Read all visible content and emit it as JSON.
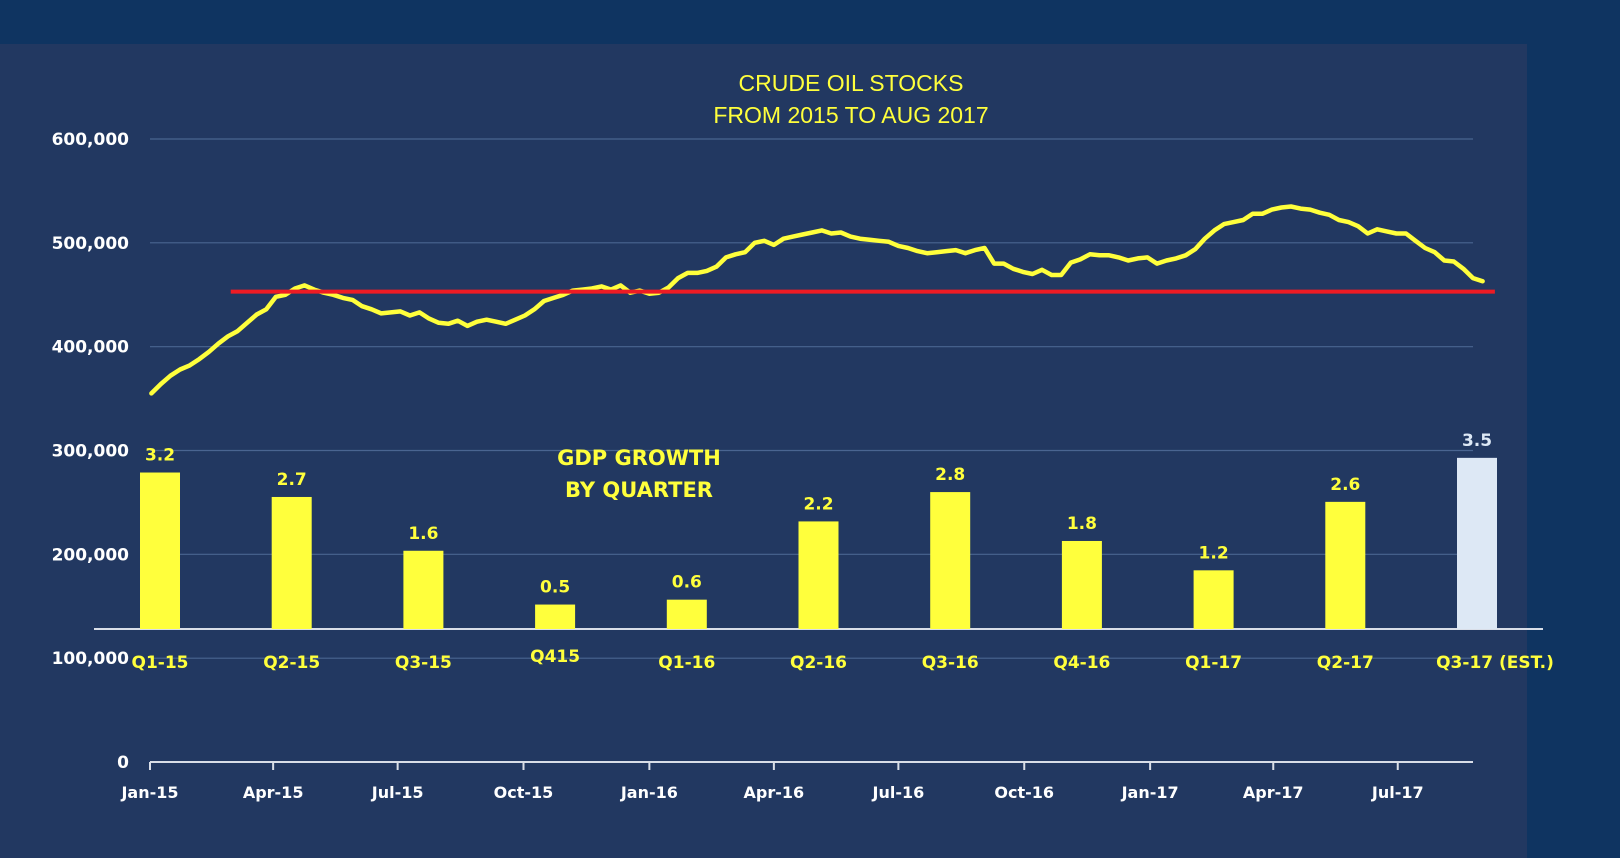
{
  "colors": {
    "page_background": "#0f3461",
    "panel_background": "#223861",
    "gridline": "#4a6591",
    "axis": "#d9dee8",
    "tick_text": "#ffffff",
    "oil_line": "#ffff3c",
    "reference_line": "#ee1b24",
    "gdp_bar": "#ffff3c",
    "gdp_bar_estimate": "#dde8f5",
    "gdp_text": "#ffff3c",
    "estimate_label": "#dde8f5"
  },
  "chart_data": [
    {
      "type": "line",
      "title": "CRUDE OIL STOCKS",
      "subtitle": "FROM 2015 TO AUG 2017",
      "xlabel": "",
      "ylabel": "",
      "ylim": [
        0,
        600000
      ],
      "y_ticks": [
        "0",
        "100,000",
        "200,000",
        "300,000",
        "400,000",
        "500,000",
        "600,000"
      ],
      "y_tick_values": [
        0,
        100000,
        200000,
        300000,
        400000,
        500000,
        600000
      ],
      "x_tick_labels": [
        "Jan-15",
        "Apr-15",
        "Jul-15",
        "Oct-15",
        "Jan-16",
        "Apr-16",
        "Jul-16",
        "Oct-16",
        "Jan-17",
        "Apr-17",
        "Jul-17"
      ],
      "x_tick_dates": [
        "2015-01-01",
        "2015-04-01",
        "2015-07-01",
        "2015-10-01",
        "2016-01-01",
        "2016-04-01",
        "2016-07-01",
        "2016-10-01",
        "2017-01-01",
        "2017-04-01",
        "2017-07-01"
      ],
      "x_range": [
        "2015-01-01",
        "2017-08-25"
      ],
      "grid": true,
      "series": [
        {
          "points": [
            [
              "2015-01-02",
              355000
            ],
            [
              "2015-01-09",
              364000
            ],
            [
              "2015-01-16",
              372000
            ],
            [
              "2015-01-23",
              378000
            ],
            [
              "2015-01-30",
              382000
            ],
            [
              "2015-02-06",
              388000
            ],
            [
              "2015-02-13",
              395000
            ],
            [
              "2015-02-20",
              403000
            ],
            [
              "2015-02-27",
              410000
            ],
            [
              "2015-03-06",
              415000
            ],
            [
              "2015-03-13",
              423000
            ],
            [
              "2015-03-20",
              431000
            ],
            [
              "2015-03-27",
              436000
            ],
            [
              "2015-04-03",
              448000
            ],
            [
              "2015-04-10",
              450000
            ],
            [
              "2015-04-17",
              456000
            ],
            [
              "2015-04-24",
              459000
            ],
            [
              "2015-05-01",
              455000
            ],
            [
              "2015-05-08",
              452000
            ],
            [
              "2015-05-15",
              450000
            ],
            [
              "2015-05-22",
              447000
            ],
            [
              "2015-05-29",
              445000
            ],
            [
              "2015-06-05",
              439000
            ],
            [
              "2015-06-12",
              436000
            ],
            [
              "2015-06-19",
              432000
            ],
            [
              "2015-06-26",
              433000
            ],
            [
              "2015-07-03",
              434000
            ],
            [
              "2015-07-10",
              430000
            ],
            [
              "2015-07-17",
              433000
            ],
            [
              "2015-07-24",
              427000
            ],
            [
              "2015-07-31",
              423000
            ],
            [
              "2015-08-07",
              422000
            ],
            [
              "2015-08-14",
              425000
            ],
            [
              "2015-08-21",
              420000
            ],
            [
              "2015-08-28",
              424000
            ],
            [
              "2015-09-04",
              426000
            ],
            [
              "2015-09-11",
              424000
            ],
            [
              "2015-09-18",
              422000
            ],
            [
              "2015-09-25",
              426000
            ],
            [
              "2015-10-02",
              430000
            ],
            [
              "2015-10-09",
              436000
            ],
            [
              "2015-10-16",
              444000
            ],
            [
              "2015-10-23",
              447000
            ],
            [
              "2015-10-30",
              450000
            ],
            [
              "2015-11-06",
              454000
            ],
            [
              "2015-11-13",
              455000
            ],
            [
              "2015-11-20",
              456000
            ],
            [
              "2015-11-27",
              458000
            ],
            [
              "2015-12-04",
              455000
            ],
            [
              "2015-12-11",
              459000
            ],
            [
              "2015-12-18",
              452000
            ],
            [
              "2015-12-25",
              454000
            ],
            [
              "2016-01-01",
              451000
            ],
            [
              "2016-01-08",
              452000
            ],
            [
              "2016-01-15",
              457000
            ],
            [
              "2016-01-22",
              466000
            ],
            [
              "2016-01-29",
              471000
            ],
            [
              "2016-02-05",
              471000
            ],
            [
              "2016-02-12",
              473000
            ],
            [
              "2016-02-19",
              477000
            ],
            [
              "2016-02-26",
              486000
            ],
            [
              "2016-03-04",
              489000
            ],
            [
              "2016-03-11",
              491000
            ],
            [
              "2016-03-18",
              500000
            ],
            [
              "2016-03-25",
              502000
            ],
            [
              "2016-04-01",
              498000
            ],
            [
              "2016-04-08",
              504000
            ],
            [
              "2016-04-15",
              506000
            ],
            [
              "2016-04-22",
              508000
            ],
            [
              "2016-04-29",
              510000
            ],
            [
              "2016-05-06",
              512000
            ],
            [
              "2016-05-13",
              509000
            ],
            [
              "2016-05-20",
              510000
            ],
            [
              "2016-05-27",
              506000
            ],
            [
              "2016-06-03",
              504000
            ],
            [
              "2016-06-10",
              503000
            ],
            [
              "2016-06-17",
              502000
            ],
            [
              "2016-06-24",
              501000
            ],
            [
              "2016-07-01",
              497000
            ],
            [
              "2016-07-08",
              495000
            ],
            [
              "2016-07-15",
              492000
            ],
            [
              "2016-07-22",
              490000
            ],
            [
              "2016-07-29",
              491000
            ],
            [
              "2016-08-05",
              492000
            ],
            [
              "2016-08-12",
              493000
            ],
            [
              "2016-08-19",
              490000
            ],
            [
              "2016-08-26",
              493000
            ],
            [
              "2016-09-02",
              495000
            ],
            [
              "2016-09-09",
              480000
            ],
            [
              "2016-09-16",
              480000
            ],
            [
              "2016-09-23",
              475000
            ],
            [
              "2016-09-30",
              472000
            ],
            [
              "2016-10-07",
              470000
            ],
            [
              "2016-10-14",
              474000
            ],
            [
              "2016-10-21",
              469000
            ],
            [
              "2016-10-28",
              469000
            ],
            [
              "2016-11-04",
              481000
            ],
            [
              "2016-11-11",
              484000
            ],
            [
              "2016-11-18",
              489000
            ],
            [
              "2016-11-25",
              488000
            ],
            [
              "2016-12-02",
              488000
            ],
            [
              "2016-12-09",
              486000
            ],
            [
              "2016-12-16",
              483000
            ],
            [
              "2016-12-23",
              485000
            ],
            [
              "2016-12-30",
              486000
            ],
            [
              "2017-01-06",
              480000
            ],
            [
              "2017-01-13",
              483000
            ],
            [
              "2017-01-20",
              485000
            ],
            [
              "2017-01-27",
              488000
            ],
            [
              "2017-02-03",
              494000
            ],
            [
              "2017-02-10",
              504000
            ],
            [
              "2017-02-17",
              512000
            ],
            [
              "2017-02-24",
              518000
            ],
            [
              "2017-03-03",
              520000
            ],
            [
              "2017-03-10",
              522000
            ],
            [
              "2017-03-17",
              528000
            ],
            [
              "2017-03-24",
              528000
            ],
            [
              "2017-03-31",
              532000
            ],
            [
              "2017-04-07",
              534000
            ],
            [
              "2017-04-14",
              535000
            ],
            [
              "2017-04-21",
              533000
            ],
            [
              "2017-04-28",
              532000
            ],
            [
              "2017-05-05",
              529000
            ],
            [
              "2017-05-12",
              527000
            ],
            [
              "2017-05-19",
              522000
            ],
            [
              "2017-05-26",
              520000
            ],
            [
              "2017-06-02",
              516000
            ],
            [
              "2017-06-09",
              509000
            ],
            [
              "2017-06-16",
              513000
            ],
            [
              "2017-06-23",
              511000
            ],
            [
              "2017-06-30",
              509000
            ],
            [
              "2017-07-07",
              509000
            ],
            [
              "2017-07-14",
              502000
            ],
            [
              "2017-07-21",
              495000
            ],
            [
              "2017-07-28",
              491000
            ],
            [
              "2017-08-04",
              483000
            ],
            [
              "2017-08-11",
              482000
            ],
            [
              "2017-08-18",
              475000
            ],
            [
              "2017-08-25",
              466000
            ],
            [
              "2017-09-01",
              463000
            ]
          ]
        }
      ],
      "reference_line": {
        "value": 453000,
        "from": "2015-03-01",
        "to": "2017-09-10"
      }
    },
    {
      "type": "bar",
      "title": "GDP GROWTH",
      "subtitle": "BY QUARTER",
      "categories": [
        "Q1-15",
        "Q2-15",
        "Q3-15",
        "Q415",
        "Q1-16",
        "Q2-16",
        "Q3-16",
        "Q4-16",
        "Q1-17",
        "Q2-17",
        "Q3-17 (EST.)"
      ],
      "values": [
        3.2,
        2.7,
        1.6,
        0.5,
        0.6,
        2.2,
        2.8,
        1.8,
        1.2,
        2.6,
        3.5
      ],
      "value_labels": [
        "3.2",
        "2.7",
        "1.6",
        "0.5",
        "0.6",
        "2.2",
        "2.8",
        "1.8",
        "1.2",
        "2.6",
        "3.5"
      ],
      "estimated": [
        false,
        false,
        false,
        false,
        false,
        false,
        false,
        false,
        false,
        false,
        true
      ],
      "ylim": [
        0,
        3.5
      ],
      "xlabel": "",
      "ylabel": ""
    }
  ]
}
